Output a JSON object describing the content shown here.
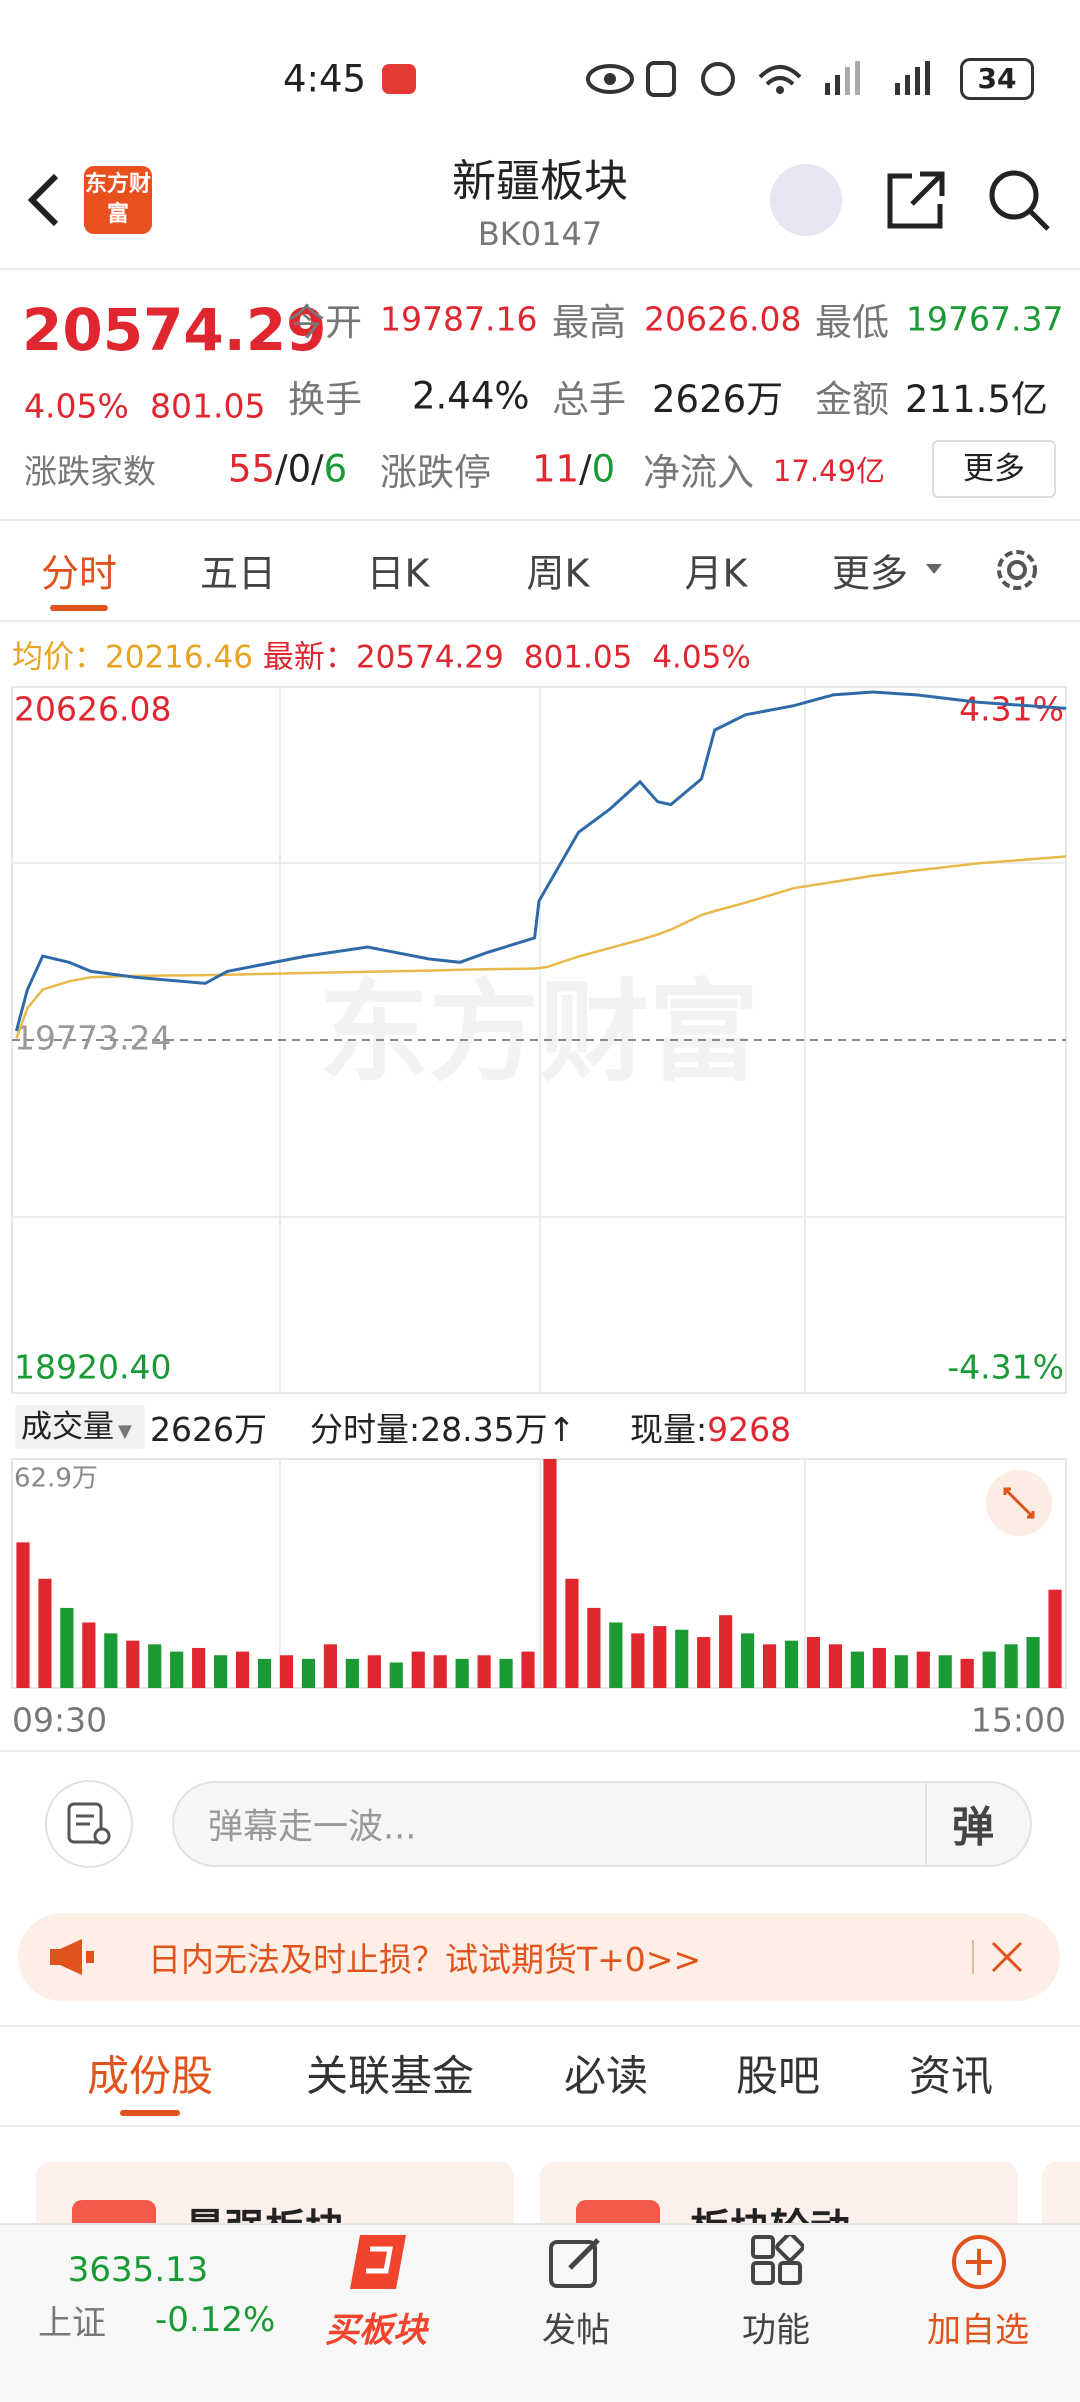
{
  "status_bar": {
    "time": "4:45",
    "battery": "34"
  },
  "header": {
    "logo": "东方财富",
    "title": "新疆板块",
    "code": "BK0147"
  },
  "quote": {
    "price": "20574.29",
    "change_pct": "4.05%",
    "change": "801.05",
    "fields": [
      {
        "label": "今开",
        "value": "19787.16"
      },
      {
        "label": "最高",
        "value": "20626.08"
      },
      {
        "label": "最低",
        "value": "19767.37"
      },
      {
        "label": "换手",
        "value": "2.44%"
      },
      {
        "label": "总手",
        "value": "2626万"
      },
      {
        "label": "金额",
        "value": "211.5亿"
      }
    ],
    "breadth": {
      "label": "涨跌家数",
      "up": "55",
      "flat": "0",
      "down": "6",
      "sep": "/"
    },
    "limits": {
      "label": "涨跌停",
      "up": "11",
      "down": "0"
    },
    "net_inflow": {
      "label": "净流入",
      "value": "17.49亿"
    },
    "more": "更多"
  },
  "tabs": [
    "分时",
    "五日",
    "日K",
    "周K",
    "月K",
    "更多"
  ],
  "info_line": {
    "avg_label": "均价：",
    "avg": "20216.46",
    "last_label": "最新：",
    "last": "20574.29",
    "change": "801.05",
    "change_pct": "4.05%"
  },
  "chart_data": [
    {
      "type": "line",
      "watermark": "东方财富",
      "x": [
        1,
        3.5,
        7,
        13,
        18,
        28,
        44,
        49,
        67,
        81,
        95,
        102,
        108,
        119,
        120,
        122,
        129,
        136,
        143,
        147,
        150,
        157,
        160,
        167,
        178,
        187,
        196,
        206,
        220,
        240
      ],
      "xlim": [
        0,
        240
      ],
      "xticks": [
        {
          "value": 0,
          "label": "09:30"
        },
        {
          "value": 240,
          "label": "15:00"
        }
      ],
      "ylim": [
        18920.4,
        20626.08
      ],
      "yticks": [
        {
          "value": 18920.4,
          "label": "18920.40"
        },
        19773.24,
        20626.08
      ],
      "y2lim": [
        -4.31,
        4.31
      ],
      "y2ticks": [
        {
          "value": -4.31,
          "label": "-4.31%"
        },
        {
          "value": 4.31,
          "label": "4.31%"
        }
      ],
      "series": [
        {
          "color": "#2f6aa8",
          "values": [
            19795,
            19895,
            19976,
            19961,
            19939,
            19925,
            19910,
            19939,
            19976,
            19998,
            19969,
            19961,
            19984,
            20020,
            20109,
            20146,
            20275,
            20330,
            20397,
            20349,
            20342,
            20404,
            20522,
            20559,
            20581,
            20607,
            20614,
            20607,
            20589,
            20574.29
          ]
        },
        {
          "color": "#e8b84a",
          "values": [
            19777,
            19850,
            19895,
            19915,
            19925,
            19928,
            19930,
            19931,
            19935,
            19938,
            19941,
            19943,
            19944,
            19946,
            19947,
            19950,
            19975,
            19995,
            20015,
            20028,
            20040,
            20075,
            20085,
            20105,
            20140,
            20155,
            20170,
            20183,
            20200,
            20216.46
          ]
        }
      ]
    },
    {
      "type": "bar",
      "ylim": [
        0,
        62.9
      ],
      "yticks": [
        {
          "value": 62.9,
          "label": "62.9万"
        }
      ],
      "values": [
        40,
        30,
        22,
        18,
        15,
        13,
        12,
        10,
        11,
        9,
        10,
        8,
        9,
        8,
        12,
        8,
        9,
        7,
        10,
        9,
        8,
        9,
        8,
        10,
        62.9,
        30,
        22,
        18,
        15,
        17,
        16,
        14,
        20,
        15,
        12,
        13,
        14,
        12,
        10,
        11,
        9,
        10,
        9,
        8,
        10,
        12,
        14,
        27
      ],
      "colors": [
        "#e0262f",
        "#e0262f",
        "#1a9a35",
        "#e0262f",
        "#1a9a35",
        "#e0262f",
        "#1a9a35",
        "#1a9a35",
        "#e0262f",
        "#1a9a35",
        "#e0262f",
        "#1a9a35",
        "#e0262f",
        "#1a9a35",
        "#e0262f",
        "#1a9a35",
        "#e0262f",
        "#1a9a35",
        "#e0262f",
        "#e0262f",
        "#1a9a35",
        "#e0262f",
        "#1a9a35",
        "#e0262f",
        "#e0262f",
        "#e0262f",
        "#e0262f",
        "#1a9a35",
        "#e0262f",
        "#e0262f",
        "#1a9a35",
        "#e0262f",
        "#e0262f",
        "#1a9a35",
        "#e0262f",
        "#1a9a35",
        "#e0262f",
        "#e0262f",
        "#1a9a35",
        "#e0262f",
        "#1a9a35",
        "#e0262f",
        "#1a9a35",
        "#e0262f",
        "#1a9a35",
        "#1a9a35",
        "#1a9a35",
        "#e0262f"
      ]
    }
  ],
  "volume_header": {
    "selector": "成交量",
    "total": "2626万",
    "minute_label": "分时量:",
    "minute_value": "28.35万",
    "arrow": "↑",
    "current_label": "现量:",
    "current_value": "9268"
  },
  "comment_bar": {
    "placeholder": "弹幕走一波...",
    "button": "弹"
  },
  "banner": {
    "text": "日内无法及时止损？试试期货T+0>>"
  },
  "section_tabs": [
    "成份股",
    "关联基金",
    "必读",
    "股吧",
    "资讯"
  ],
  "cards": [
    "最强板块",
    "板块轮动"
  ],
  "bottom_nav": {
    "index_value": "3635.13",
    "index_name": "上证",
    "index_change": "-0.12%",
    "items": [
      "买板块",
      "发帖",
      "功能",
      "加自选"
    ]
  }
}
